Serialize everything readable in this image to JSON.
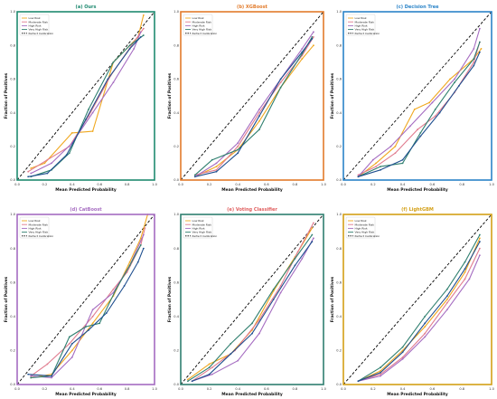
{
  "figure": {
    "shared": {
      "xlabel": "Mean Predicted Probability",
      "ylabel": "Fraction of Positives",
      "xlim": [
        0,
        1.0
      ],
      "ylim": [
        0,
        1.0
      ],
      "ticks": [
        "0.0",
        "0.2",
        "0.4",
        "0.6",
        "0.8",
        "1.0"
      ],
      "legend_position": "upper-left",
      "grid": false
    },
    "series_colors": {
      "Low Risk": "#f0a820",
      "Moderate Risk": "#e07b8e",
      "High Risk": "#a56cc1",
      "Very High Risk": "#2f7f6f",
      "Very High Risk (alt)": "#1f4f8f",
      "Perfect Calibration": "#000000"
    }
  },
  "chart_data": [
    {
      "type": "line",
      "title": "(a) Ours",
      "title_color": "#1f8a70",
      "frame_color": "#1f8a70",
      "xlabel": "Mean Predicted Probability",
      "ylabel": "Fraction of Positives",
      "xlim": [
        0,
        1.0
      ],
      "ylim": [
        0,
        1.0
      ],
      "legend": [
        "Low Risk",
        "Moderate Risk",
        "High Risk",
        "Very High Risk",
        "Perfect Calibration"
      ],
      "series": [
        {
          "name": "Low Risk",
          "color": "#f0a820",
          "x": [
            0.1,
            0.2,
            0.4,
            0.55,
            0.7,
            0.88,
            0.92
          ],
          "y": [
            0.07,
            0.1,
            0.28,
            0.29,
            0.7,
            0.85,
            0.98
          ]
        },
        {
          "name": "Moderate Risk",
          "color": "#e07b8e",
          "x": [
            0.08,
            0.22,
            0.38,
            0.52,
            0.68,
            0.85,
            0.92
          ],
          "y": [
            0.05,
            0.12,
            0.2,
            0.38,
            0.62,
            0.82,
            0.9
          ]
        },
        {
          "name": "High Risk",
          "color": "#a56cc1",
          "x": [
            0.1,
            0.25,
            0.4,
            0.55,
            0.7,
            0.85,
            0.9
          ],
          "y": [
            0.04,
            0.1,
            0.22,
            0.4,
            0.58,
            0.78,
            0.88
          ]
        },
        {
          "name": "Very High Risk",
          "color": "#2f7f6f",
          "x": [
            0.1,
            0.25,
            0.38,
            0.52,
            0.7,
            0.82,
            0.92
          ],
          "y": [
            0.02,
            0.06,
            0.16,
            0.42,
            0.7,
            0.8,
            0.86
          ]
        },
        {
          "name": "Very High Risk",
          "color": "#1f4f8f",
          "x": [
            0.08,
            0.22,
            0.36,
            0.5,
            0.66,
            0.82,
            0.9
          ],
          "y": [
            0.02,
            0.04,
            0.15,
            0.36,
            0.6,
            0.78,
            0.85
          ]
        }
      ]
    },
    {
      "type": "line",
      "title": "(b) XGBoost",
      "title_color": "#e27b2b",
      "frame_color": "#e27b2b",
      "xlabel": "Mean Predicted Probability",
      "ylabel": "Fraction of Positives",
      "xlim": [
        0,
        1.0
      ],
      "ylim": [
        0,
        1.0
      ],
      "legend": [
        "Low Risk",
        "Moderate Risk",
        "High Risk",
        "Very High Risk",
        "Perfect Calibration"
      ],
      "series": [
        {
          "name": "Low Risk",
          "color": "#f0a820",
          "x": [
            0.1,
            0.25,
            0.4,
            0.55,
            0.7,
            0.85,
            0.93
          ],
          "y": [
            0.02,
            0.08,
            0.18,
            0.35,
            0.55,
            0.72,
            0.8
          ]
        },
        {
          "name": "Moderate Risk",
          "color": "#e07b8e",
          "x": [
            0.1,
            0.25,
            0.4,
            0.55,
            0.7,
            0.85,
            0.93
          ],
          "y": [
            0.03,
            0.06,
            0.2,
            0.4,
            0.58,
            0.74,
            0.85
          ]
        },
        {
          "name": "High Risk",
          "color": "#a56cc1",
          "x": [
            0.1,
            0.25,
            0.4,
            0.55,
            0.7,
            0.85,
            0.93
          ],
          "y": [
            0.02,
            0.1,
            0.22,
            0.42,
            0.6,
            0.78,
            0.88
          ]
        },
        {
          "name": "Very High Risk",
          "color": "#2f7f6f",
          "x": [
            0.1,
            0.22,
            0.4,
            0.55,
            0.7,
            0.85,
            0.92
          ],
          "y": [
            0.03,
            0.12,
            0.18,
            0.3,
            0.55,
            0.75,
            0.85
          ]
        },
        {
          "name": "Very High Risk",
          "color": "#1f4f8f",
          "x": [
            0.1,
            0.25,
            0.4,
            0.55,
            0.7,
            0.85,
            0.92
          ],
          "y": [
            0.02,
            0.05,
            0.16,
            0.38,
            0.6,
            0.76,
            0.84
          ]
        }
      ]
    },
    {
      "type": "line",
      "title": "(c) Decision Tree",
      "title_color": "#2b84c8",
      "frame_color": "#2b84c8",
      "xlabel": "Mean Predicted Probability",
      "ylabel": "Fraction of Positives",
      "xlim": [
        0,
        1.0
      ],
      "ylim": [
        0,
        1.0
      ],
      "legend": [
        "Low Risk",
        "Moderate Risk",
        "High Risk",
        "Very High Risk",
        "Perfect Calibration"
      ],
      "series": [
        {
          "name": "Low Risk",
          "color": "#f0a820",
          "x": [
            0.1,
            0.22,
            0.35,
            0.48,
            0.58,
            0.72,
            0.88,
            0.93
          ],
          "y": [
            0.02,
            0.1,
            0.2,
            0.42,
            0.46,
            0.6,
            0.72,
            0.78
          ]
        },
        {
          "name": "Moderate Risk",
          "color": "#e07b8e",
          "x": [
            0.1,
            0.22,
            0.35,
            0.5,
            0.62,
            0.75,
            0.88,
            0.92
          ],
          "y": [
            0.03,
            0.08,
            0.16,
            0.3,
            0.38,
            0.52,
            0.7,
            0.82
          ]
        },
        {
          "name": "High Risk",
          "color": "#a56cc1",
          "x": [
            0.1,
            0.2,
            0.32,
            0.45,
            0.6,
            0.75,
            0.88,
            0.92
          ],
          "y": [
            0.02,
            0.12,
            0.2,
            0.32,
            0.46,
            0.6,
            0.78,
            0.9
          ]
        },
        {
          "name": "Very High Risk",
          "color": "#2f7f6f",
          "x": [
            0.1,
            0.25,
            0.4,
            0.52,
            0.62,
            0.75,
            0.88,
            0.92
          ],
          "y": [
            0.02,
            0.08,
            0.1,
            0.28,
            0.42,
            0.58,
            0.72,
            0.82
          ]
        },
        {
          "name": "Very High Risk",
          "color": "#1f4f8f",
          "x": [
            0.1,
            0.25,
            0.4,
            0.52,
            0.65,
            0.78,
            0.88,
            0.92
          ],
          "y": [
            0.02,
            0.06,
            0.12,
            0.26,
            0.4,
            0.56,
            0.68,
            0.76
          ]
        }
      ]
    },
    {
      "type": "line",
      "title": "(d) CatBoost",
      "title_color": "#a56cc1",
      "frame_color": "#a56cc1",
      "xlabel": "Mean Predicted Probability",
      "ylabel": "Fraction of Positives",
      "xlim": [
        0,
        1.0
      ],
      "ylim": [
        0,
        1.0
      ],
      "legend": [
        "Low Risk",
        "Moderate Risk",
        "High Risk",
        "Very High Risk",
        "Perfect Calibration"
      ],
      "series": [
        {
          "name": "Low Risk",
          "color": "#f0a820",
          "x": [
            0.1,
            0.25,
            0.4,
            0.55,
            0.7,
            0.82,
            0.9,
            0.95
          ],
          "y": [
            0.04,
            0.06,
            0.2,
            0.36,
            0.52,
            0.72,
            0.86,
            1.0
          ]
        },
        {
          "name": "Moderate Risk",
          "color": "#e07b8e",
          "x": [
            0.1,
            0.22,
            0.38,
            0.55,
            0.7,
            0.8,
            0.9,
            0.93
          ],
          "y": [
            0.05,
            0.12,
            0.24,
            0.4,
            0.56,
            0.66,
            0.82,
            0.92
          ]
        },
        {
          "name": "High Risk",
          "color": "#a56cc1",
          "x": [
            0.1,
            0.25,
            0.4,
            0.55,
            0.7,
            0.82,
            0.92
          ],
          "y": [
            0.05,
            0.04,
            0.16,
            0.44,
            0.54,
            0.7,
            0.88
          ]
        },
        {
          "name": "Very High Risk",
          "color": "#2f7f6f",
          "x": [
            0.1,
            0.25,
            0.38,
            0.5,
            0.6,
            0.72,
            0.82,
            0.9
          ],
          "y": [
            0.04,
            0.05,
            0.28,
            0.34,
            0.36,
            0.56,
            0.7,
            0.82
          ]
        },
        {
          "name": "Very High Risk",
          "color": "#1f4f8f",
          "x": [
            0.08,
            0.25,
            0.4,
            0.52,
            0.65,
            0.78,
            0.88,
            0.92
          ],
          "y": [
            0.06,
            0.05,
            0.24,
            0.32,
            0.42,
            0.58,
            0.72,
            0.8
          ]
        }
      ]
    },
    {
      "type": "line",
      "title": "(e) Voting Classifier",
      "title_color": "#e06060",
      "frame_color": "#2f7f6f",
      "xlabel": "Mean Predicted Probability",
      "ylabel": "Fraction of Positives",
      "xlim": [
        0,
        1.0
      ],
      "ylim": [
        0,
        1.0
      ],
      "legend": [
        "Low Risk",
        "Moderate Risk",
        "High Risk",
        "Very High Risk",
        "Perfect Calibration"
      ],
      "series": [
        {
          "name": "Low Risk",
          "color": "#f0a820",
          "x": [
            0.05,
            0.2,
            0.35,
            0.5,
            0.65,
            0.8,
            0.92
          ],
          "y": [
            0.03,
            0.12,
            0.18,
            0.32,
            0.55,
            0.75,
            0.92
          ]
        },
        {
          "name": "Moderate Risk",
          "color": "#e07b8e",
          "x": [
            0.08,
            0.22,
            0.38,
            0.55,
            0.7,
            0.82,
            0.93
          ],
          "y": [
            0.02,
            0.1,
            0.2,
            0.38,
            0.58,
            0.78,
            0.95
          ]
        },
        {
          "name": "High Risk",
          "color": "#a56cc1",
          "x": [
            0.08,
            0.22,
            0.4,
            0.55,
            0.7,
            0.85,
            0.93
          ],
          "y": [
            0.02,
            0.06,
            0.14,
            0.3,
            0.54,
            0.74,
            0.86
          ]
        },
        {
          "name": "Very High Risk",
          "color": "#2f7f6f",
          "x": [
            0.05,
            0.2,
            0.35,
            0.5,
            0.65,
            0.8,
            0.92
          ],
          "y": [
            0.02,
            0.1,
            0.24,
            0.36,
            0.56,
            0.74,
            0.88
          ]
        },
        {
          "name": "Very High Risk",
          "color": "#1f4f8f",
          "x": [
            0.08,
            0.2,
            0.35,
            0.5,
            0.65,
            0.8,
            0.92
          ],
          "y": [
            0.02,
            0.06,
            0.18,
            0.3,
            0.5,
            0.7,
            0.84
          ]
        }
      ]
    },
    {
      "type": "line",
      "title": "(f) LightGBM",
      "title_color": "#d4a017",
      "frame_color": "#d4a017",
      "xlabel": "Mean Predicted Probability",
      "ylabel": "Fraction of Positives",
      "xlim": [
        0,
        1.0
      ],
      "ylim": [
        0,
        1.0
      ],
      "legend": [
        "Low Risk",
        "Moderate Risk",
        "High Risk",
        "Very High Risk",
        "Perfect Calibration"
      ],
      "series": [
        {
          "name": "Low Risk",
          "color": "#f0a820",
          "x": [
            0.1,
            0.25,
            0.4,
            0.55,
            0.7,
            0.82,
            0.92
          ],
          "y": [
            0.02,
            0.08,
            0.2,
            0.34,
            0.5,
            0.66,
            0.86
          ]
        },
        {
          "name": "Moderate Risk",
          "color": "#e07b8e",
          "x": [
            0.1,
            0.25,
            0.4,
            0.55,
            0.7,
            0.82,
            0.92
          ],
          "y": [
            0.02,
            0.06,
            0.16,
            0.3,
            0.48,
            0.62,
            0.8
          ]
        },
        {
          "name": "High Risk",
          "color": "#a56cc1",
          "x": [
            0.1,
            0.25,
            0.4,
            0.55,
            0.7,
            0.85,
            0.92
          ],
          "y": [
            0.02,
            0.05,
            0.15,
            0.28,
            0.44,
            0.62,
            0.76
          ]
        },
        {
          "name": "Very High Risk",
          "color": "#2f7f6f",
          "x": [
            0.1,
            0.25,
            0.4,
            0.55,
            0.7,
            0.82,
            0.92
          ],
          "y": [
            0.02,
            0.1,
            0.22,
            0.4,
            0.56,
            0.72,
            0.88
          ]
        },
        {
          "name": "Very High Risk",
          "color": "#1f4f8f",
          "x": [
            0.1,
            0.25,
            0.4,
            0.55,
            0.7,
            0.82,
            0.92
          ],
          "y": [
            0.02,
            0.07,
            0.19,
            0.36,
            0.52,
            0.68,
            0.84
          ]
        }
      ]
    }
  ]
}
